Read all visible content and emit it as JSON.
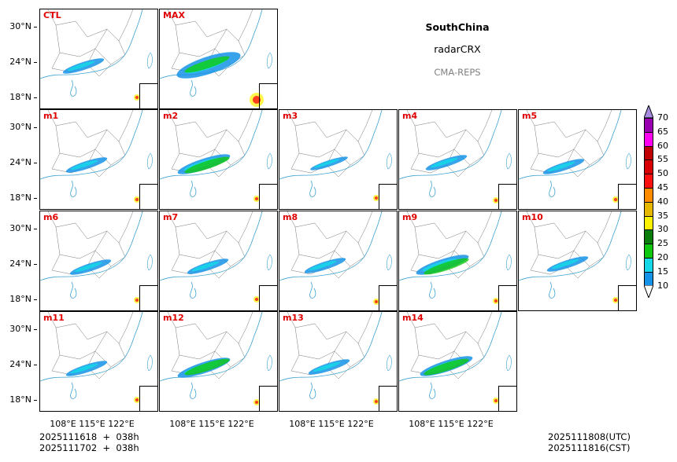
{
  "header": {
    "region": "SouthChina",
    "variable": "radarCRX",
    "model": "CMA-REPS",
    "region_color": "#0000ee",
    "model_color": "#808080"
  },
  "panels": [
    {
      "label": "CTL",
      "intensity": 1
    },
    {
      "label": "MAX",
      "intensity": 3
    },
    {
      "label": "m1",
      "intensity": 1
    },
    {
      "label": "m2",
      "intensity": 2
    },
    {
      "label": "m3",
      "intensity": 0
    },
    {
      "label": "m4",
      "intensity": 1
    },
    {
      "label": "m5",
      "intensity": 1
    },
    {
      "label": "m6",
      "intensity": 1
    },
    {
      "label": "m7",
      "intensity": 1
    },
    {
      "label": "m8",
      "intensity": 1
    },
    {
      "label": "m9",
      "intensity": 2
    },
    {
      "label": "m10",
      "intensity": 1
    },
    {
      "label": "m11",
      "intensity": 1
    },
    {
      "label": "m12",
      "intensity": 2
    },
    {
      "label": "m13",
      "intensity": 1
    },
    {
      "label": "m14",
      "intensity": 2
    }
  ],
  "axes": {
    "lat_ticks": [
      "30°N",
      "24°N",
      "18°N"
    ],
    "lon_ticks": [
      "108°E",
      "115°E",
      "122°E"
    ]
  },
  "colorbar": {
    "levels": [
      "10",
      "15",
      "20",
      "25",
      "30",
      "35",
      "40",
      "45",
      "50",
      "55",
      "60",
      "65",
      "70"
    ],
    "colors": [
      "#1593e8",
      "#14d8e8",
      "#10c810",
      "#0a7d0a",
      "#fff200",
      "#e6b800",
      "#ff8c00",
      "#ff1010",
      "#d80000",
      "#c00000",
      "#ff00f0",
      "#9a00b0"
    ],
    "over_color": "#a58ce0",
    "under_color": "#ffffff"
  },
  "footer": {
    "init_line1": "2025111618  +  038h",
    "init_line2": "2025111702  +  038h",
    "valid_utc": "2025111808(UTC)",
    "valid_cst": "2025111816(CST)"
  }
}
